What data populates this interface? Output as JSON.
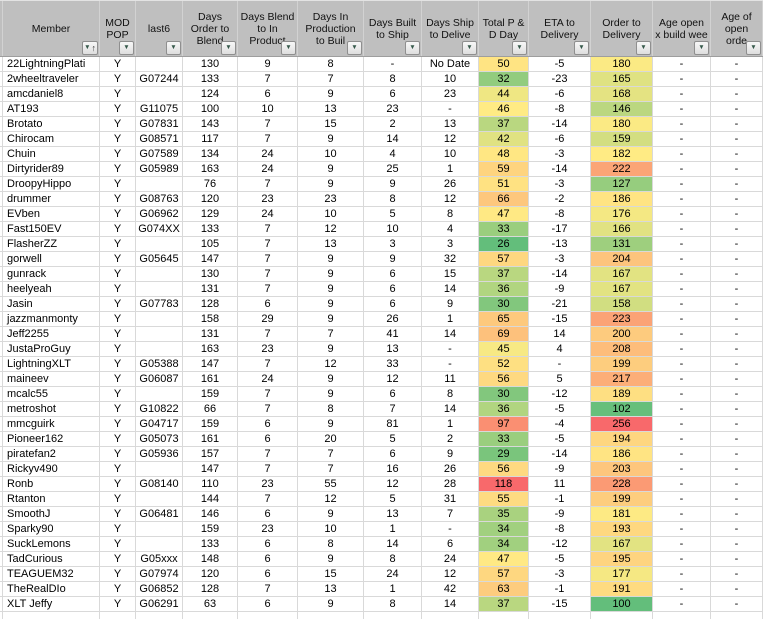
{
  "colors": {
    "header_bg": "#bfbfbf",
    "grid": "#d9d9d9",
    "scale_green": "#63BE7B",
    "scale_yellow": "#FFEB84",
    "scale_red": "#F8696B"
  },
  "columns": [
    {
      "key": "member",
      "label": "Member",
      "filter": "sort-asc",
      "align": "left",
      "color_scale": false
    },
    {
      "key": "mod-pop",
      "label": "MOD POP",
      "filter": "dropdown",
      "align": "center",
      "color_scale": false
    },
    {
      "key": "last6",
      "label": "last6",
      "filter": "dropdown",
      "align": "center",
      "color_scale": false
    },
    {
      "key": "days-order-to-blend",
      "label": "Days Order to Blend",
      "filter": "dropdown",
      "align": "center",
      "color_scale": false
    },
    {
      "key": "days-blend-to-in-production",
      "label": "Days Blend to In Product",
      "filter": "dropdown",
      "align": "center",
      "color_scale": false
    },
    {
      "key": "days-in-production-to-built",
      "label": "Days In Production to Buil",
      "filter": "dropdown",
      "align": "center",
      "color_scale": false
    },
    {
      "key": "days-built-to-ship",
      "label": "Days Built to Ship",
      "filter": "dropdown",
      "align": "center",
      "color_scale": false
    },
    {
      "key": "days-ship-to-deliver",
      "label": "Days Ship to Delive",
      "filter": "dropdown",
      "align": "center",
      "color_scale": false
    },
    {
      "key": "total-pd-days",
      "label": "Total P & D Day",
      "filter": "dropdown",
      "align": "center",
      "color_scale": true
    },
    {
      "key": "eta-to-delivery",
      "label": "ETA to Delivery",
      "filter": "dropdown",
      "align": "center",
      "color_scale": false
    },
    {
      "key": "order-to-delivery",
      "label": "Order to Delivery",
      "filter": "dropdown",
      "align": "center",
      "color_scale": true
    },
    {
      "key": "age-open-x-build-weeks",
      "label": "Age open x build wee",
      "filter": "dropdown",
      "align": "center",
      "color_scale": false
    },
    {
      "key": "age-of-open-order",
      "label": "Age of open orde",
      "filter": "dropdown",
      "align": "center",
      "color_scale": false
    }
  ],
  "rows": [
    [
      "22LightningPlati",
      "Y",
      "",
      "130",
      "9",
      "8",
      "-",
      "No Date",
      "50",
      "-5",
      "180",
      "-",
      "-"
    ],
    [
      "2wheeltraveler",
      "Y",
      "G07244",
      "133",
      "7",
      "7",
      "8",
      "10",
      "32",
      "-23",
      "165",
      "-",
      "-"
    ],
    [
      "amcdaniel8",
      "Y",
      "",
      "124",
      "6",
      "9",
      "6",
      "23",
      "44",
      "-6",
      "168",
      "-",
      "-"
    ],
    [
      "AT193",
      "Y",
      "G11075",
      "100",
      "10",
      "13",
      "23",
      "-",
      "46",
      "-8",
      "146",
      "-",
      "-"
    ],
    [
      "Brotato",
      "Y",
      "G07831",
      "143",
      "7",
      "15",
      "2",
      "13",
      "37",
      "-14",
      "180",
      "-",
      "-"
    ],
    [
      "Chirocam",
      "Y",
      "G08571",
      "117",
      "7",
      "9",
      "14",
      "12",
      "42",
      "-6",
      "159",
      "-",
      "-"
    ],
    [
      "Chuin",
      "Y",
      "G07589",
      "134",
      "24",
      "10",
      "4",
      "10",
      "48",
      "-3",
      "182",
      "-",
      "-"
    ],
    [
      "Dirtyrider89",
      "Y",
      "G05989",
      "163",
      "24",
      "9",
      "25",
      "1",
      "59",
      "-14",
      "222",
      "-",
      "-"
    ],
    [
      "DroopyHippo",
      "Y",
      "",
      "76",
      "7",
      "9",
      "9",
      "26",
      "51",
      "-3",
      "127",
      "-",
      "-"
    ],
    [
      "drummer",
      "Y",
      "G08763",
      "120",
      "23",
      "23",
      "8",
      "12",
      "66",
      "-2",
      "186",
      "-",
      "-"
    ],
    [
      "EVben",
      "Y",
      "G06962",
      "129",
      "24",
      "10",
      "5",
      "8",
      "47",
      "-8",
      "176",
      "-",
      "-"
    ],
    [
      "Fast150EV",
      "Y",
      "G074XX",
      "133",
      "7",
      "12",
      "10",
      "4",
      "33",
      "-17",
      "166",
      "-",
      "-"
    ],
    [
      "FlasherZZ",
      "Y",
      "",
      "105",
      "7",
      "13",
      "3",
      "3",
      "26",
      "-13",
      "131",
      "-",
      "-"
    ],
    [
      "gorwell",
      "Y",
      "G05645",
      "147",
      "7",
      "9",
      "9",
      "32",
      "57",
      "-3",
      "204",
      "-",
      "-"
    ],
    [
      "gunrack",
      "Y",
      "",
      "130",
      "7",
      "9",
      "6",
      "15",
      "37",
      "-14",
      "167",
      "-",
      "-"
    ],
    [
      "heelyeah",
      "Y",
      "",
      "131",
      "7",
      "9",
      "6",
      "14",
      "36",
      "-9",
      "167",
      "-",
      "-"
    ],
    [
      "Jasin",
      "Y",
      "G07783",
      "128",
      "6",
      "9",
      "6",
      "9",
      "30",
      "-21",
      "158",
      "-",
      "-"
    ],
    [
      "jazzmanmonty",
      "Y",
      "",
      "158",
      "29",
      "9",
      "26",
      "1",
      "65",
      "-15",
      "223",
      "-",
      "-"
    ],
    [
      "Jeff2255",
      "Y",
      "",
      "131",
      "7",
      "7",
      "41",
      "14",
      "69",
      "14",
      "200",
      "-",
      "-"
    ],
    [
      "JustaProGuy",
      "Y",
      "",
      "163",
      "23",
      "9",
      "13",
      "-",
      "45",
      "4",
      "208",
      "-",
      "-"
    ],
    [
      "LightningXLT",
      "Y",
      "G05388",
      "147",
      "7",
      "12",
      "33",
      "-",
      "52",
      "-",
      "199",
      "-",
      "-"
    ],
    [
      "maineev",
      "Y",
      "G06087",
      "161",
      "24",
      "9",
      "12",
      "11",
      "56",
      "5",
      "217",
      "-",
      "-"
    ],
    [
      "mcalc55",
      "Y",
      "",
      "159",
      "7",
      "9",
      "6",
      "8",
      "30",
      "-12",
      "189",
      "-",
      "-"
    ],
    [
      "metroshot",
      "Y",
      "G10822",
      "66",
      "7",
      "8",
      "7",
      "14",
      "36",
      "-5",
      "102",
      "-",
      "-"
    ],
    [
      "mmcguirk",
      "Y",
      "G04717",
      "159",
      "6",
      "9",
      "81",
      "1",
      "97",
      "-4",
      "256",
      "-",
      "-"
    ],
    [
      "Pioneer162",
      "Y",
      "G05073",
      "161",
      "6",
      "20",
      "5",
      "2",
      "33",
      "-5",
      "194",
      "-",
      "-"
    ],
    [
      "piratefan2",
      "Y",
      "G05936",
      "157",
      "7",
      "7",
      "6",
      "9",
      "29",
      "-14",
      "186",
      "-",
      "-"
    ],
    [
      "Rickyv490",
      "Y",
      "",
      "147",
      "7",
      "7",
      "16",
      "26",
      "56",
      "-9",
      "203",
      "-",
      "-"
    ],
    [
      "Ronb",
      "Y",
      "G08140",
      "110",
      "23",
      "55",
      "12",
      "28",
      "118",
      "11",
      "228",
      "-",
      "-"
    ],
    [
      "Rtanton",
      "Y",
      "",
      "144",
      "7",
      "12",
      "5",
      "31",
      "55",
      "-1",
      "199",
      "-",
      "-"
    ],
    [
      "SmoothJ",
      "Y",
      "G06481",
      "146",
      "6",
      "9",
      "13",
      "7",
      "35",
      "-9",
      "181",
      "-",
      "-"
    ],
    [
      "Sparky90",
      "Y",
      "",
      "159",
      "23",
      "10",
      "1",
      "-",
      "34",
      "-8",
      "193",
      "-",
      "-"
    ],
    [
      "SuckLemons",
      "Y",
      "",
      "133",
      "6",
      "8",
      "14",
      "6",
      "34",
      "-12",
      "167",
      "-",
      "-"
    ],
    [
      "TadCurious",
      "Y",
      "G05xxx",
      "148",
      "6",
      "9",
      "8",
      "24",
      "47",
      "-5",
      "195",
      "-",
      "-"
    ],
    [
      "TEAGUEM32",
      "Y",
      "G07974",
      "120",
      "6",
      "15",
      "24",
      "12",
      "57",
      "-3",
      "177",
      "-",
      "-"
    ],
    [
      "TheRealDIo",
      "Y",
      "G06852",
      "128",
      "7",
      "13",
      "1",
      "42",
      "63",
      "-1",
      "191",
      "-",
      "-"
    ],
    [
      "XLT Jeffy",
      "Y",
      "G06291",
      "63",
      "6",
      "9",
      "8",
      "14",
      "37",
      "-15",
      "100",
      "-",
      "-"
    ]
  ]
}
